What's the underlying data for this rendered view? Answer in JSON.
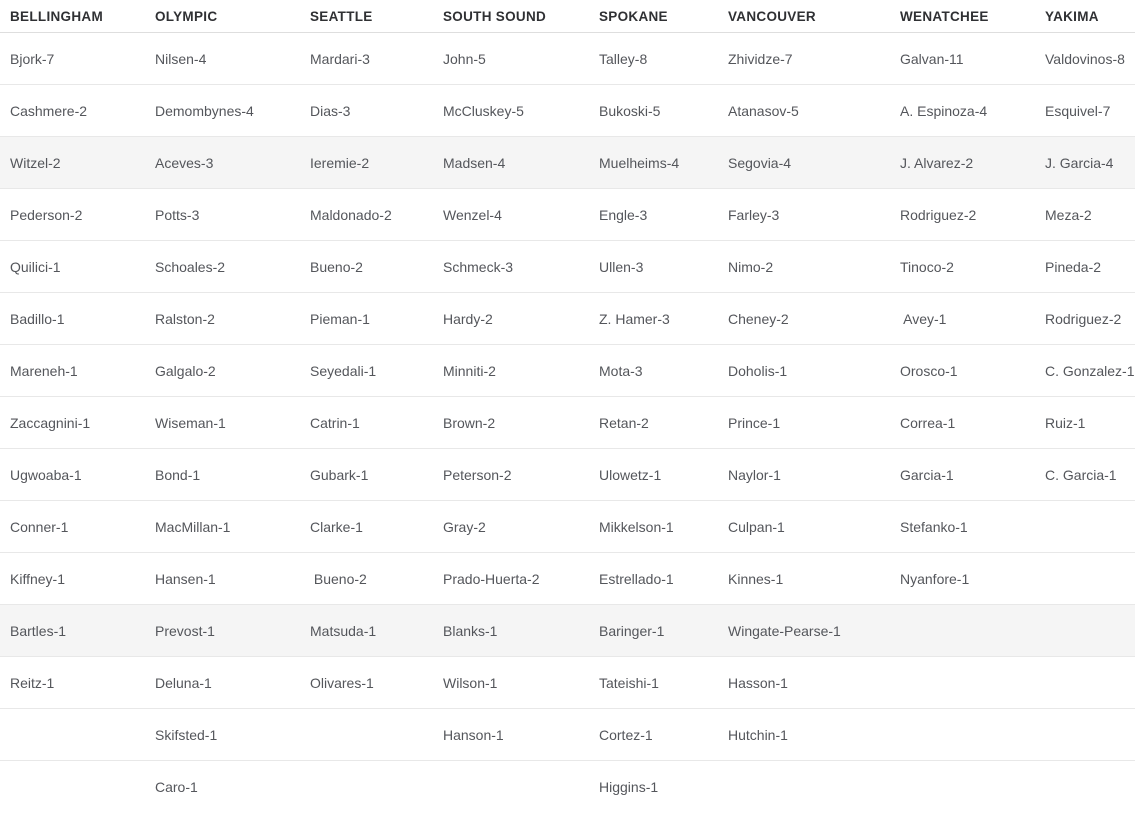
{
  "colors": {
    "background": "#ffffff",
    "header_text": "#2f3033",
    "cell_text": "#54565b",
    "row_border": "#e8e8e8",
    "header_border": "#dedede",
    "shaded_row_background": "#f5f5f5"
  },
  "table": {
    "columns": [
      "BELLINGHAM",
      "OLYMPIC",
      "SEATTLE",
      "SOUTH SOUND",
      "SPOKANE",
      "VANCOUVER",
      "WENATCHEE",
      "YAKIMA"
    ],
    "rows": [
      [
        "Bjork-7",
        "Nilsen-4",
        "Mardari-3",
        "John-5",
        "Talley-8",
        "Zhividze-7",
        "Galvan-11",
        "Valdovinos-8"
      ],
      [
        "Cashmere-2",
        "Demombynes-4",
        "Dias-3",
        "McCluskey-5",
        "Bukoski-5",
        "Atanasov-5",
        "A. Espinoza-4",
        "Esquivel-7"
      ],
      [
        "Witzel-2",
        "Aceves-3",
        "Ieremie-2",
        "Madsen-4",
        "Muelheims-4",
        "Segovia-4",
        "J. Alvarez-2",
        "J. Garcia-4"
      ],
      [
        "Pederson-2",
        "Potts-3",
        "Maldonado-2",
        "Wenzel-4",
        "Engle-3",
        "Farley-3",
        "Rodriguez-2",
        "Meza-2"
      ],
      [
        "Quilici-1",
        "Schoales-2",
        "Bueno-2",
        "Schmeck-3",
        "Ullen-3",
        "Nimo-2",
        "Tinoco-2",
        "Pineda-2"
      ],
      [
        "Badillo-1",
        "Ralston-2",
        "Pieman-1",
        "Hardy-2",
        "Z. Hamer-3",
        "Cheney-2",
        " Avey-1",
        "Rodriguez-2"
      ],
      [
        "Mareneh-1",
        "Galgalo-2",
        "Seyedali-1",
        "Minniti-2",
        "Mota-3",
        "Doholis-1",
        "Orosco-1",
        "C. Gonzalez-1"
      ],
      [
        "Zaccagnini-1",
        "Wiseman-1",
        "Catrin-1",
        "Brown-2",
        "Retan-2",
        "Prince-1",
        "Correa-1",
        "Ruiz-1"
      ],
      [
        "Ugwoaba-1",
        "Bond-1",
        "Gubark-1",
        "Peterson-2",
        "Ulowetz-1",
        "Naylor-1",
        "Garcia-1",
        "C. Garcia-1"
      ],
      [
        "Conner-1",
        "MacMillan-1",
        "Clarke-1",
        "Gray-2",
        "Mikkelson-1",
        "Culpan-1",
        "Stefanko-1",
        ""
      ],
      [
        "Kiffney-1",
        "Hansen-1",
        " Bueno-2",
        "Prado-Huerta-2",
        "Estrellado-1",
        "Kinnes-1",
        "Nyanfore-1",
        ""
      ],
      [
        "Bartles-1",
        "Prevost-1",
        "Matsuda-1",
        "Blanks-1",
        "Baringer-1",
        "Wingate-Pearse-1",
        "",
        ""
      ],
      [
        "Reitz-1",
        "Deluna-1",
        "Olivares-1",
        "Wilson-1",
        "Tateishi-1",
        "Hasson-1",
        "",
        ""
      ],
      [
        "",
        "Skifsted-1",
        "",
        "Hanson-1",
        "Cortez-1",
        "Hutchin-1",
        "",
        ""
      ],
      [
        "",
        "Caro-1",
        "",
        "",
        "Higgins-1",
        "",
        "",
        ""
      ]
    ],
    "shaded_row_indices": [
      2,
      11
    ]
  }
}
